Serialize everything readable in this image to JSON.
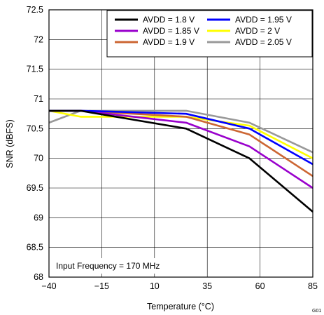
{
  "chart_data": {
    "type": "line",
    "xlabel": "Temperature (°C)",
    "ylabel": "SNR (dBFS)",
    "xlim": [
      -40,
      85
    ],
    "ylim": [
      68,
      72.5
    ],
    "xticks": [
      -40,
      -15,
      10,
      35,
      60,
      85
    ],
    "xtick_labels": [
      "−40",
      "−15",
      "10",
      "35",
      "60",
      "85"
    ],
    "yticks": [
      68,
      68.5,
      69,
      69.5,
      70,
      70.5,
      71,
      71.5,
      72,
      72.5
    ],
    "ytick_labels": [
      "68",
      "68.5",
      "69",
      "69.5",
      "70",
      "70.5",
      "71",
      "71.5",
      "72",
      "72.5"
    ],
    "grid": true,
    "legend_position": "top-right",
    "x": [
      -40,
      -25,
      25,
      55,
      85
    ],
    "series": [
      {
        "name": "AVDD = 1.8 V",
        "color": "#000000",
        "values": [
          70.8,
          70.8,
          70.5,
          70.0,
          69.1
        ]
      },
      {
        "name": "AVDD = 1.95 V",
        "color": "#0000ff",
        "values": [
          70.8,
          70.8,
          70.75,
          70.5,
          69.9
        ]
      },
      {
        "name": "AVDD = 1.85 V",
        "color": "#9900cc",
        "values": [
          70.8,
          70.8,
          70.6,
          70.2,
          69.5
        ]
      },
      {
        "name": "AVDD = 2 V",
        "color": "#ffff00",
        "values": [
          70.8,
          70.7,
          70.7,
          70.55,
          70.0
        ]
      },
      {
        "name": "AVDD = 1.9 V",
        "color": "#cc6633",
        "values": [
          70.8,
          70.8,
          70.7,
          70.4,
          69.7
        ]
      },
      {
        "name": "AVDD = 2.05 V",
        "color": "#999999",
        "values": [
          70.6,
          70.8,
          70.8,
          70.6,
          70.1
        ]
      }
    ],
    "annotation": "Input Frequency = 170 MHz",
    "corner_label": "G01"
  }
}
